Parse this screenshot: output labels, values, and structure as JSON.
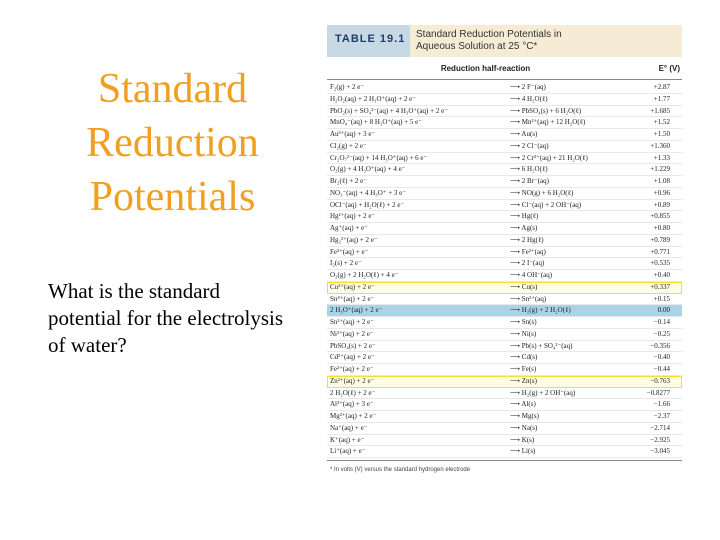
{
  "slide": {
    "title_lines": [
      "Standard",
      "Reduction",
      "Potentials"
    ],
    "question": "What is the standard potential for the electrolysis of water?"
  },
  "table": {
    "label": "TABLE 19.1",
    "caption_line1": "Standard Reduction Potentials in",
    "caption_line2": "Aqueous Solution at 25 °C*",
    "col_reaction": "Reduction half-reaction",
    "col_e": "E° (V)",
    "footnote": "* In volts (V) versus the standard hydrogen electrode",
    "rows": [
      {
        "lhs": "F₂(g) + 2 e⁻",
        "rhs": "⟶ 2 F⁻(aq)",
        "e": "+2.87",
        "hl": ""
      },
      {
        "lhs": "H₂O₂(aq) + 2 H₃O⁺(aq) + 2 e⁻",
        "rhs": "⟶ 4 H₂O(ℓ)",
        "e": "+1.77",
        "hl": ""
      },
      {
        "lhs": "PbO₂(s) + SO₄²⁻(aq) + 4 H₃O⁺(aq) + 2 e⁻",
        "rhs": "⟶ PbSO₄(s) + 6 H₂O(ℓ)",
        "e": "+1.685",
        "hl": ""
      },
      {
        "lhs": "MnO₄⁻(aq) + 8 H₃O⁺(aq) + 5 e⁻",
        "rhs": "⟶ Mn²⁺(aq) + 12 H₂O(ℓ)",
        "e": "+1.52",
        "hl": ""
      },
      {
        "lhs": "Au³⁺(aq) + 3 e⁻",
        "rhs": "⟶ Au(s)",
        "e": "+1.50",
        "hl": ""
      },
      {
        "lhs": "Cl₂(g) + 2 e⁻",
        "rhs": "⟶ 2 Cl⁻(aq)",
        "e": "+1.360",
        "hl": ""
      },
      {
        "lhs": "Cr₂O₇²⁻(aq) + 14 H₃O⁺(aq) + 6 e⁻",
        "rhs": "⟶ 2 Cr³⁺(aq) + 21 H₂O(ℓ)",
        "e": "+1.33",
        "hl": ""
      },
      {
        "lhs": "O₂(g) + 4 H₃O⁺(aq) + 4 e⁻",
        "rhs": "⟶ 6 H₂O(ℓ)",
        "e": "+1.229",
        "hl": ""
      },
      {
        "lhs": "Br₂(ℓ) + 2 e⁻",
        "rhs": "⟶ 2 Br⁻(aq)",
        "e": "+1.08",
        "hl": ""
      },
      {
        "lhs": "NO₃⁻(aq) + 4 H₃O⁺ + 3 e⁻",
        "rhs": "⟶ NO(g) + 6 H₂O(ℓ)",
        "e": "+0.96",
        "hl": ""
      },
      {
        "lhs": "OCl⁻(aq) + H₂O(ℓ) + 2 e⁻",
        "rhs": "⟶ Cl⁻(aq) + 2 OH⁻(aq)",
        "e": "+0.89",
        "hl": ""
      },
      {
        "lhs": "Hg²⁺(aq) + 2 e⁻",
        "rhs": "⟶ Hg(ℓ)",
        "e": "+0.855",
        "hl": ""
      },
      {
        "lhs": "Ag⁺(aq) + e⁻",
        "rhs": "⟶ Ag(s)",
        "e": "+0.80",
        "hl": ""
      },
      {
        "lhs": "Hg₂²⁺(aq) + 2 e⁻",
        "rhs": "⟶ 2 Hg(ℓ)",
        "e": "+0.789",
        "hl": ""
      },
      {
        "lhs": "Fe³⁺(aq) + e⁻",
        "rhs": "⟶ Fe²⁺(aq)",
        "e": "+0.771",
        "hl": ""
      },
      {
        "lhs": "I₂(s) + 2 e⁻",
        "rhs": "⟶ 2 I⁻(aq)",
        "e": "+0.535",
        "hl": ""
      },
      {
        "lhs": "O₂(g) + 2 H₂O(ℓ) + 4 e⁻",
        "rhs": "⟶ 4 OH⁻(aq)",
        "e": "+0.40",
        "hl": ""
      },
      {
        "lhs": "Cu²⁺(aq) + 2 e⁻",
        "rhs": "⟶ Cu(s)",
        "e": "+0.337",
        "hl": "yellow"
      },
      {
        "lhs": "Sn⁴⁺(aq) + 2 e⁻",
        "rhs": "⟶ Sn²⁺(aq)",
        "e": "+0.15",
        "hl": ""
      },
      {
        "lhs": "2 H₃O⁺(aq) + 2 e⁻",
        "rhs": "⟶ H₂(g) + 2 H₂O(ℓ)",
        "e": "0.00",
        "hl": "blue"
      },
      {
        "lhs": "Sn²⁺(aq) + 2 e⁻",
        "rhs": "⟶ Sn(s)",
        "e": "−0.14",
        "hl": ""
      },
      {
        "lhs": "Ni²⁺(aq) + 2 e⁻",
        "rhs": "⟶ Ni(s)",
        "e": "−0.25",
        "hl": ""
      },
      {
        "lhs": "PbSO₄(s) + 2 e⁻",
        "rhs": "⟶ Pb(s) + SO₄²⁻(aq)",
        "e": "−0.356",
        "hl": ""
      },
      {
        "lhs": "Cd²⁺(aq) + 2 e⁻",
        "rhs": "⟶ Cd(s)",
        "e": "−0.40",
        "hl": ""
      },
      {
        "lhs": "Fe²⁺(aq) + 2 e⁻",
        "rhs": "⟶ Fe(s)",
        "e": "−0.44",
        "hl": ""
      },
      {
        "lhs": "Zn²⁺(aq) + 2 e⁻",
        "rhs": "⟶ Zn(s)",
        "e": "−0.763",
        "hl": "yellow"
      },
      {
        "lhs": "2 H₂O(ℓ) + 2 e⁻",
        "rhs": "⟶ H₂(g) + 2 OH⁻(aq)",
        "e": "−0.8277",
        "hl": ""
      },
      {
        "lhs": "Al³⁺(aq) + 3 e⁻",
        "rhs": "⟶ Al(s)",
        "e": "−1.66",
        "hl": ""
      },
      {
        "lhs": "Mg²⁺(aq) + 2 e⁻",
        "rhs": "⟶ Mg(s)",
        "e": "−2.37",
        "hl": ""
      },
      {
        "lhs": "Na⁺(aq) + e⁻",
        "rhs": "⟶ Na(s)",
        "e": "−2.714",
        "hl": ""
      },
      {
        "lhs": "K⁺(aq) + e⁻",
        "rhs": "⟶ K(s)",
        "e": "−2.925",
        "hl": ""
      },
      {
        "lhs": "Li⁺(aq) + e⁻",
        "rhs": "⟶ Li(s)",
        "e": "−3.045",
        "hl": ""
      }
    ]
  }
}
